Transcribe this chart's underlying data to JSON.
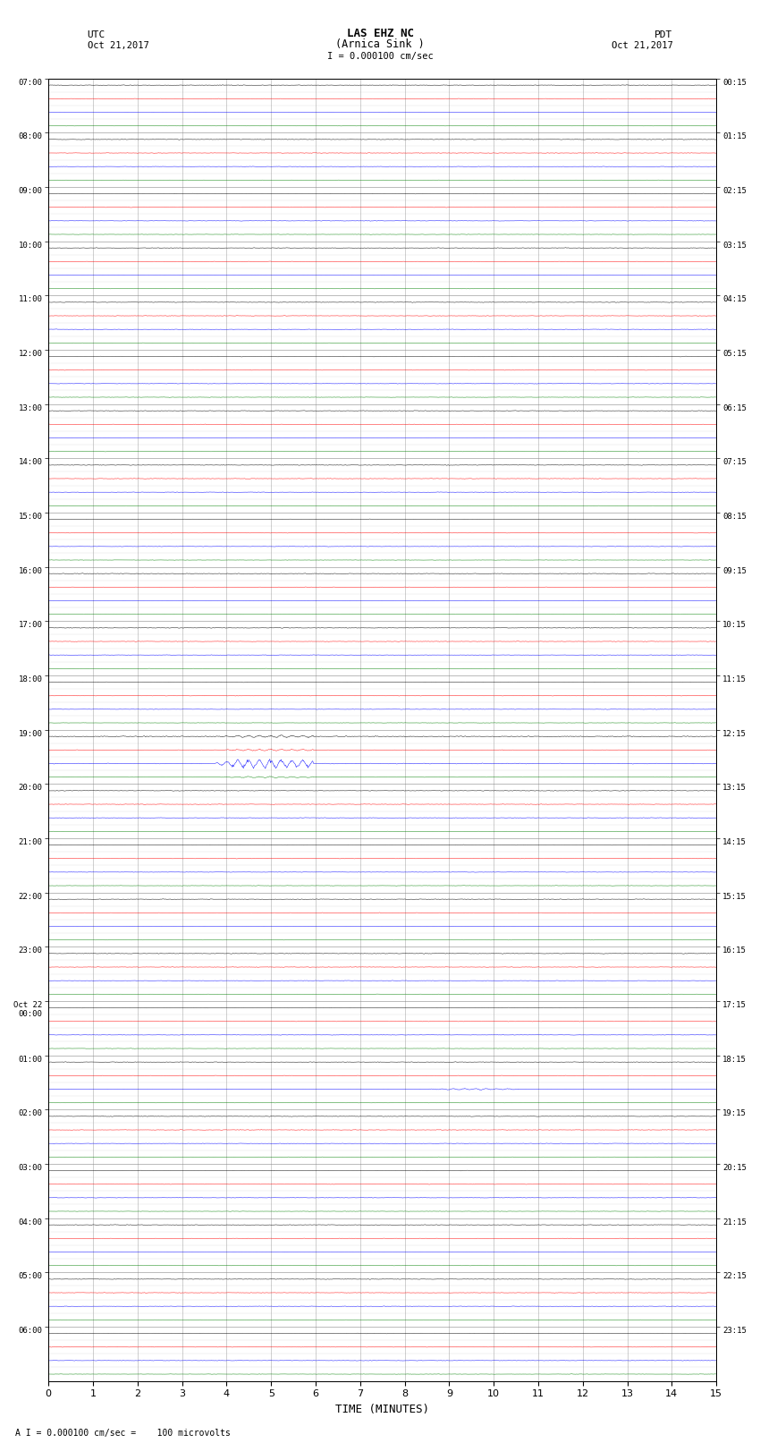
{
  "title_line1": "LAS EHZ NC",
  "title_line2": "(Arnica Sink )",
  "scale_text": "I = 0.000100 cm/sec",
  "left_label": "UTC",
  "left_date": "Oct 21,2017",
  "right_label": "PDT",
  "right_date": "Oct 21,2017",
  "bottom_label": "TIME (MINUTES)",
  "footer_text": "A I = 0.000100 cm/sec =    100 microvolts",
  "utc_labels": [
    "07:00",
    "08:00",
    "09:00",
    "10:00",
    "11:00",
    "12:00",
    "13:00",
    "14:00",
    "15:00",
    "16:00",
    "17:00",
    "18:00",
    "19:00",
    "20:00",
    "21:00",
    "22:00",
    "23:00",
    "Oct 22\n00:00",
    "01:00",
    "02:00",
    "03:00",
    "04:00",
    "05:00",
    "06:00"
  ],
  "pdt_labels": [
    "00:15",
    "01:15",
    "02:15",
    "03:15",
    "04:15",
    "05:15",
    "06:15",
    "07:15",
    "08:15",
    "09:15",
    "10:15",
    "11:15",
    "12:15",
    "13:15",
    "14:15",
    "15:15",
    "16:15",
    "17:15",
    "18:15",
    "19:15",
    "20:15",
    "21:15",
    "22:15",
    "23:15"
  ],
  "n_hours": 24,
  "n_minutes": 15,
  "traces_per_hour": 4,
  "trace_colors": [
    "black",
    "red",
    "blue",
    "green"
  ],
  "noise_levels": [
    0.035,
    0.03,
    0.025,
    0.022
  ],
  "bg_color": "white",
  "grid_color": "#888888",
  "seismic_event_hour": 12,
  "seismic_event_minute": 3.7,
  "seismic_event_trace": 2,
  "seismic_event_amp": 1.8,
  "event2_hour": 18,
  "event2_minute": 8.3,
  "event2_trace": 2,
  "event2_amp": 0.25,
  "event3_hour": 22,
  "event3_minute": 7.5,
  "event3_trace": 2,
  "event3_amp": 0.15
}
